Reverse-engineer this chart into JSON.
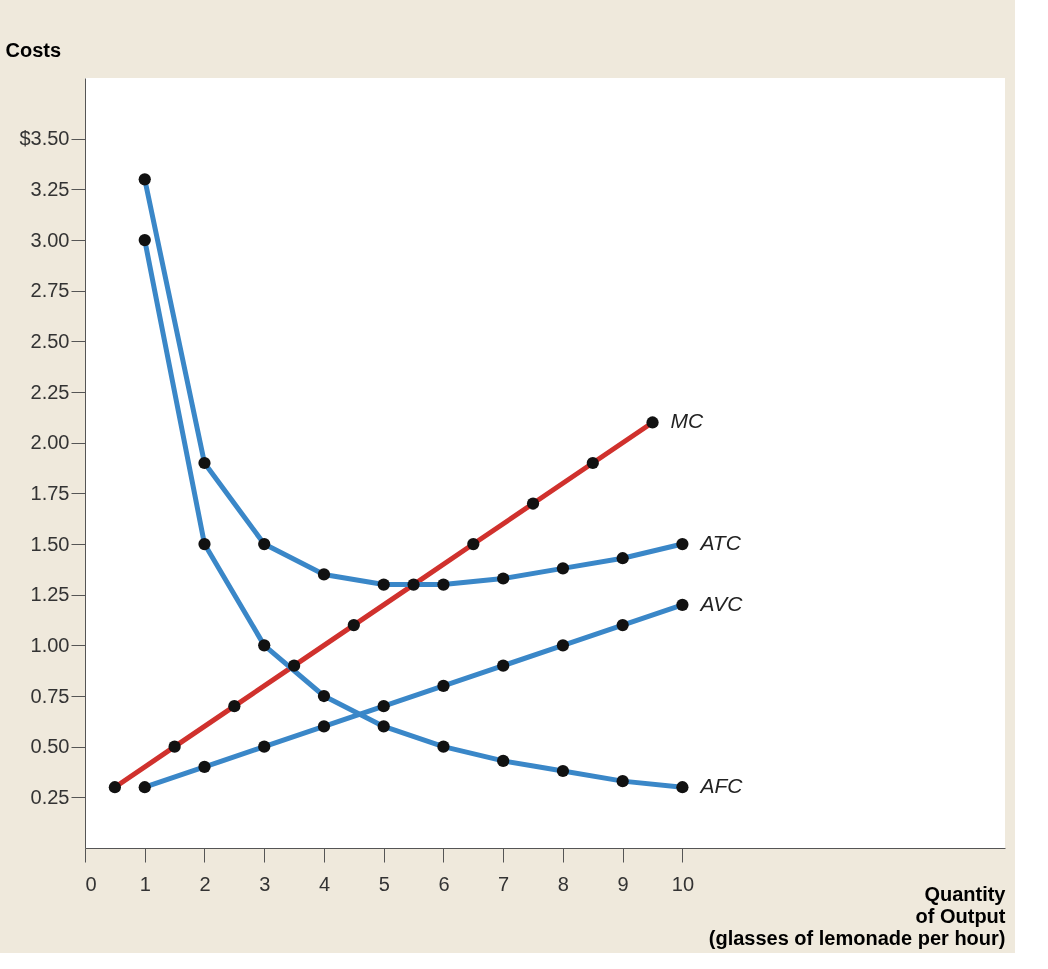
{
  "chart_data": {
    "type": "line",
    "ylabel": "Costs",
    "xlabel": "Quantity\nof Output\n(glasses of lemonade per hour)",
    "x": [
      1,
      2,
      3,
      4,
      5,
      6,
      7,
      8,
      9,
      10
    ],
    "series": [
      {
        "name": "MC",
        "color": "#d0312d",
        "x": [
          0.5,
          1.5,
          2.5,
          3.5,
          4.5,
          5.5,
          6.5,
          7.5,
          8.5,
          9.5
        ],
        "values": [
          0.3,
          0.5,
          0.7,
          0.9,
          1.1,
          1.3,
          1.5,
          1.7,
          1.9,
          2.1
        ]
      },
      {
        "name": "ATC",
        "color": "#3a87c8",
        "values": [
          3.3,
          1.9,
          1.5,
          1.35,
          1.3,
          1.3,
          1.33,
          1.38,
          1.43,
          1.5
        ]
      },
      {
        "name": "AVC",
        "color": "#3a87c8",
        "values": [
          0.3,
          0.4,
          0.5,
          0.6,
          0.7,
          0.8,
          0.9,
          1.0,
          1.1,
          1.2
        ]
      },
      {
        "name": "AFC",
        "color": "#3a87c8",
        "values": [
          3.0,
          1.5,
          1.0,
          0.75,
          0.6,
          0.5,
          0.43,
          0.38,
          0.33,
          0.3
        ]
      }
    ],
    "xlim": [
      0,
      15.4
    ],
    "ylim": [
      0,
      3.8
    ],
    "xticks": [
      0,
      1,
      2,
      3,
      4,
      5,
      6,
      7,
      8,
      9,
      10
    ],
    "yticks": [
      {
        "value": 0.25,
        "label": "0.25"
      },
      {
        "value": 0.5,
        "label": "0.50"
      },
      {
        "value": 0.75,
        "label": "0.75"
      },
      {
        "value": 1.0,
        "label": "1.00"
      },
      {
        "value": 1.25,
        "label": "1.25"
      },
      {
        "value": 1.5,
        "label": "1.50"
      },
      {
        "value": 1.75,
        "label": "1.75"
      },
      {
        "value": 2.0,
        "label": "2.00"
      },
      {
        "value": 2.25,
        "label": "2.25"
      },
      {
        "value": 2.5,
        "label": "2.50"
      },
      {
        "value": 2.75,
        "label": "2.75"
      },
      {
        "value": 3.0,
        "label": "3.00"
      },
      {
        "value": 3.25,
        "label": "3.25"
      },
      {
        "value": 3.5,
        "label": "$3.50"
      }
    ],
    "grid": false,
    "marker": "circle",
    "line_style": "solid"
  }
}
